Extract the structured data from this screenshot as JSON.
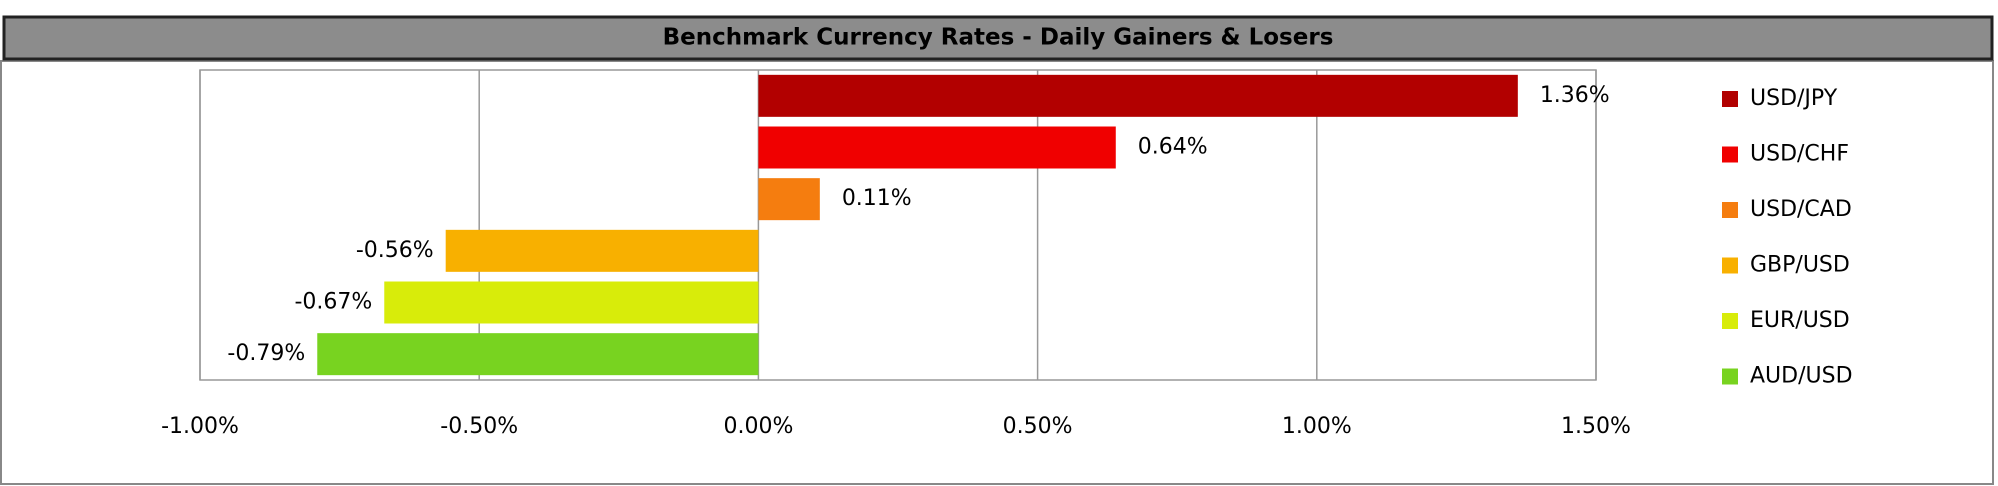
{
  "chart_data": {
    "type": "hbar",
    "title": "Benchmark Currency Rates - Daily Gainers & Losers",
    "series": [
      {
        "name": "USD/JPY",
        "color": "#b20000",
        "values": [
          1.36
        ],
        "value_labels": [
          "1.36%"
        ]
      },
      {
        "name": "USD/CHF",
        "color": "#f00000",
        "values": [
          0.64
        ],
        "value_labels": [
          "0.64%"
        ]
      },
      {
        "name": "USD/CAD",
        "color": "#f57d0f",
        "values": [
          0.11
        ],
        "value_labels": [
          "0.11%"
        ]
      },
      {
        "name": "GBP/USD",
        "color": "#f8b000",
        "values": [
          -0.56
        ],
        "value_labels": [
          "-0.56%"
        ]
      },
      {
        "name": "EUR/USD",
        "color": "#d8ec0a",
        "values": [
          -0.67
        ],
        "value_labels": [
          "-0.67%"
        ]
      },
      {
        "name": "AUD/USD",
        "color": "#78d320",
        "values": [
          -0.79
        ],
        "value_labels": [
          "-0.79%"
        ]
      }
    ],
    "xlim": [
      -1,
      1.5
    ],
    "xticks": [
      {
        "value": -1,
        "label": "-1.00%"
      },
      {
        "value": -0.5,
        "label": "-0.50%"
      },
      {
        "value": 0,
        "label": "0.00%"
      },
      {
        "value": 0.5,
        "label": "0.50%"
      },
      {
        "value": 1,
        "label": "1.00%"
      },
      {
        "value": 1.5,
        "label": "1.50%"
      }
    ],
    "grid": true,
    "legend": "right"
  }
}
